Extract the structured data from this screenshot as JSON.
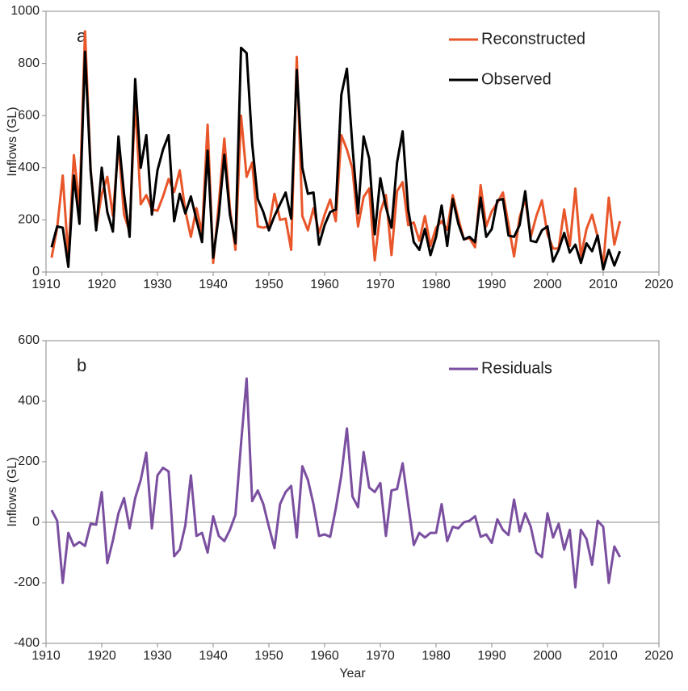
{
  "chart_data": [
    {
      "type": "line",
      "annotation": "a",
      "ylabel": "Inflows (GL)",
      "x": [
        1911,
        1912,
        1913,
        1914,
        1915,
        1916,
        1917,
        1918,
        1919,
        1920,
        1921,
        1922,
        1923,
        1924,
        1925,
        1926,
        1927,
        1928,
        1929,
        1930,
        1931,
        1932,
        1933,
        1934,
        1935,
        1936,
        1937,
        1938,
        1939,
        1940,
        1941,
        1942,
        1943,
        1944,
        1945,
        1946,
        1947,
        1948,
        1949,
        1950,
        1951,
        1952,
        1953,
        1954,
        1955,
        1956,
        1957,
        1958,
        1959,
        1960,
        1961,
        1962,
        1963,
        1964,
        1965,
        1966,
        1967,
        1968,
        1969,
        1970,
        1971,
        1972,
        1973,
        1974,
        1975,
        1976,
        1977,
        1978,
        1979,
        1980,
        1981,
        1982,
        1983,
        1984,
        1985,
        1986,
        1987,
        1988,
        1989,
        1990,
        1991,
        1992,
        1993,
        1994,
        1995,
        1996,
        1997,
        1998,
        1999,
        2000,
        2001,
        2002,
        2003,
        2004,
        2005,
        2006,
        2007,
        2008,
        2009,
        2010,
        2011,
        2012,
        2013
      ],
      "series": [
        {
          "name": "Reconstructed",
          "color": "#e8562a",
          "values": [
            55,
            170,
            370,
            55,
            448,
            250,
            923,
            395,
            168,
            300,
            365,
            215,
            490,
            220,
            155,
            660,
            260,
            295,
            240,
            235,
            290,
            357,
            307,
            390,
            235,
            135,
            245,
            150,
            565,
            35,
            260,
            512,
            245,
            85,
            600,
            365,
            420,
            175,
            170,
            175,
            300,
            200,
            205,
            85,
            825,
            215,
            160,
            245,
            150,
            220,
            278,
            195,
            525,
            470,
            395,
            175,
            288,
            320,
            45,
            230,
            295,
            65,
            310,
            345,
            180,
            190,
            120,
            215,
            100,
            170,
            195,
            162,
            295,
            205,
            125,
            130,
            95,
            333,
            175,
            233,
            265,
            305,
            182,
            60,
            210,
            280,
            135,
            215,
            275,
            145,
            90,
            90,
            240,
            100,
            320,
            60,
            165,
            220,
            135,
            25,
            285,
            105,
            195
          ]
        },
        {
          "name": "Observed",
          "color": "#000000",
          "values": [
            95,
            175,
            170,
            20,
            370,
            185,
            845,
            390,
            160,
            400,
            230,
            155,
            520,
            300,
            135,
            740,
            400,
            525,
            220,
            390,
            470,
            525,
            195,
            300,
            225,
            290,
            200,
            115,
            465,
            55,
            215,
            450,
            220,
            110,
            860,
            840,
            490,
            280,
            230,
            160,
            215,
            260,
            305,
            205,
            775,
            400,
            300,
            305,
            105,
            180,
            230,
            240,
            680,
            780,
            480,
            225,
            520,
            435,
            145,
            360,
            250,
            170,
            420,
            540,
            240,
            115,
            85,
            165,
            65,
            135,
            255,
            100,
            280,
            185,
            125,
            135,
            115,
            285,
            135,
            165,
            275,
            280,
            140,
            135,
            180,
            310,
            120,
            115,
            160,
            175,
            40,
            85,
            150,
            75,
            105,
            35,
            110,
            80,
            140,
            10,
            85,
            25,
            80
          ]
        }
      ],
      "xlim": [
        1910,
        2020
      ],
      "xticks": [
        1910,
        1920,
        1930,
        1940,
        1950,
        1960,
        1970,
        1980,
        1990,
        2000,
        2010,
        2020
      ],
      "ylim": [
        0,
        1000
      ],
      "yticks": [
        0,
        200,
        400,
        600,
        800,
        1000
      ],
      "legend": "upper right"
    },
    {
      "type": "line",
      "annotation": "b",
      "ylabel": "Inflows (GL)",
      "xlabel": "Year",
      "x": [
        1911,
        1912,
        1913,
        1914,
        1915,
        1916,
        1917,
        1918,
        1919,
        1920,
        1921,
        1922,
        1923,
        1924,
        1925,
        1926,
        1927,
        1928,
        1929,
        1930,
        1931,
        1932,
        1933,
        1934,
        1935,
        1936,
        1937,
        1938,
        1939,
        1940,
        1941,
        1942,
        1943,
        1944,
        1945,
        1946,
        1947,
        1948,
        1949,
        1950,
        1951,
        1952,
        1953,
        1954,
        1955,
        1956,
        1957,
        1958,
        1959,
        1960,
        1961,
        1962,
        1963,
        1964,
        1965,
        1966,
        1967,
        1968,
        1969,
        1970,
        1971,
        1972,
        1973,
        1974,
        1975,
        1976,
        1977,
        1978,
        1979,
        1980,
        1981,
        1982,
        1983,
        1984,
        1985,
        1986,
        1987,
        1988,
        1989,
        1990,
        1991,
        1992,
        1993,
        1994,
        1995,
        1996,
        1997,
        1998,
        1999,
        2000,
        2001,
        2002,
        2003,
        2004,
        2005,
        2006,
        2007,
        2008,
        2009,
        2010,
        2011,
        2012,
        2013
      ],
      "series": [
        {
          "name": "Residuals",
          "color": "#7b4fa0",
          "values": [
            40,
            5,
            -200,
            -35,
            -78,
            -65,
            -78,
            -5,
            -8,
            100,
            -135,
            -60,
            30,
            80,
            -20,
            80,
            140,
            230,
            -20,
            155,
            180,
            168,
            -112,
            -90,
            -10,
            155,
            -45,
            -35,
            -100,
            20,
            -45,
            -62,
            -25,
            25,
            260,
            475,
            70,
            105,
            60,
            -15,
            -85,
            60,
            100,
            120,
            -50,
            185,
            140,
            60,
            -45,
            -40,
            -48,
            45,
            155,
            310,
            85,
            50,
            232,
            115,
            100,
            130,
            -45,
            105,
            110,
            195,
            60,
            -75,
            -35,
            -50,
            -35,
            -35,
            60,
            -62,
            -15,
            -20,
            0,
            5,
            20,
            -48,
            -40,
            -68,
            10,
            -25,
            -42,
            75,
            -30,
            30,
            -15,
            -100,
            -115,
            30,
            -50,
            -5,
            -90,
            -25,
            -215,
            -25,
            -55,
            -140,
            5,
            -15,
            -200,
            -80,
            -115
          ]
        }
      ],
      "xlim": [
        1910,
        2020
      ],
      "xticks": [
        1910,
        1920,
        1930,
        1940,
        1950,
        1960,
        1970,
        1980,
        1990,
        2000,
        2010,
        2020
      ],
      "ylim": [
        -400,
        600
      ],
      "yticks": [
        -400,
        -200,
        0,
        200,
        400,
        600
      ],
      "zero_line": true,
      "legend": "upper right"
    }
  ]
}
